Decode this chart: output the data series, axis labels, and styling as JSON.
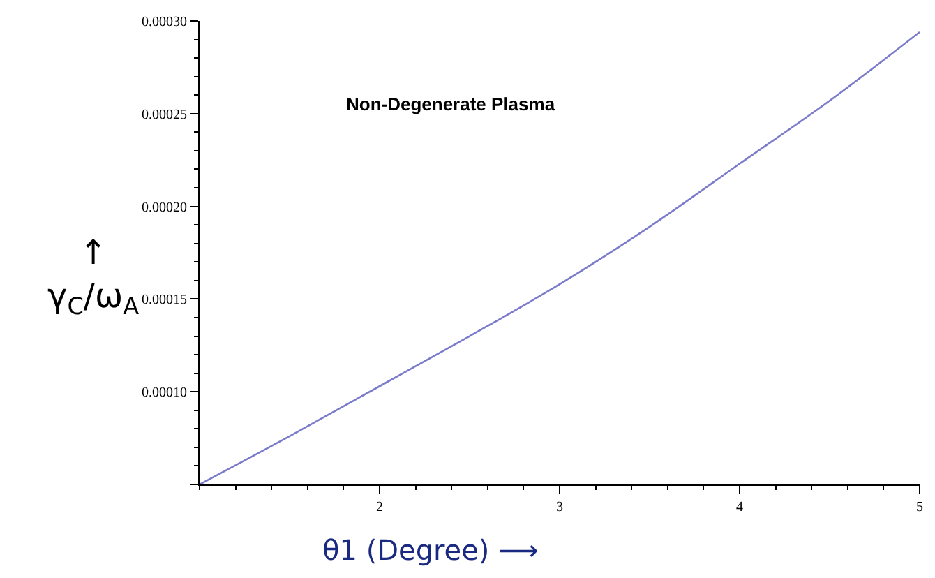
{
  "chart_data": {
    "type": "line",
    "xlabel": "θ1 (Degree) ⟶",
    "ylabel": "↑\nγ$_{C}$/ω$_{A}$",
    "annotations": [
      "Non-Degenerate Plasma"
    ],
    "x": [
      1,
      1.5,
      2,
      2.5,
      3,
      3.5,
      4,
      4.5,
      5
    ],
    "series": [
      {
        "color": "#7b7bcc",
        "values": [
          5e-05,
          7.6e-05,
          0.000103,
          0.00013,
          0.000158,
          0.000189,
          0.000223,
          0.000257,
          0.000294
        ]
      }
    ],
    "xlim": [
      1,
      5
    ],
    "ylim": [
      5e-05,
      0.0003
    ],
    "xticks": [
      2,
      3,
      4,
      5
    ],
    "yticks": [
      {
        "value": 5e-05,
        "label": null
      },
      {
        "value": 0.0001,
        "label": "0.00010"
      },
      {
        "value": 0.00015,
        "label": "0.00015"
      },
      {
        "value": 0.0002,
        "label": "0.00020"
      },
      {
        "value": 0.00025,
        "label": "0.00025"
      },
      {
        "value": 0.0003,
        "label": "0.00030"
      }
    ],
    "legend": false,
    "marker": "none",
    "line_style": "solid"
  }
}
